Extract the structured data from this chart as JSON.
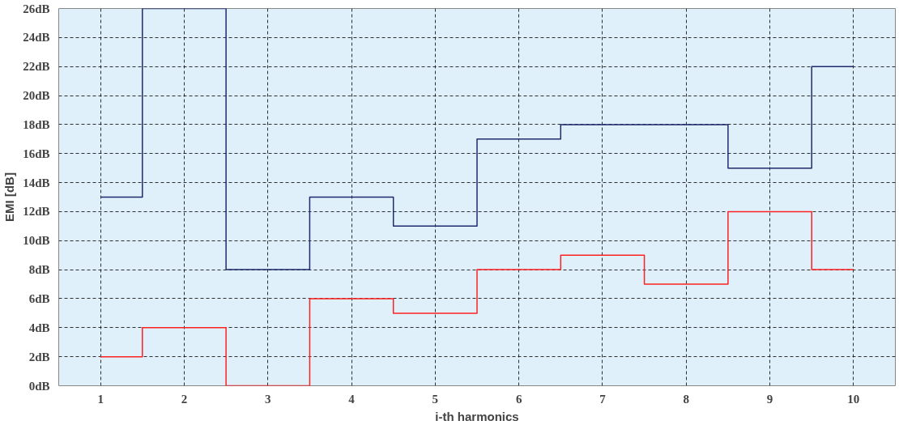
{
  "chart_data": {
    "type": "step",
    "xlabel": "i-th harmonics",
    "ylabel": "EMI [dB]",
    "categories": [
      "1",
      "2",
      "3",
      "4",
      "5",
      "6",
      "7",
      "8",
      "9",
      "10"
    ],
    "series": [
      {
        "color": "#1f2a6e",
        "values": [
          13,
          26,
          8,
          13,
          11,
          17,
          18,
          18,
          15,
          22
        ]
      },
      {
        "color": "#ff2020",
        "values": [
          2,
          4,
          0,
          6,
          5,
          8,
          9,
          7,
          12,
          8
        ]
      }
    ],
    "ylim": [
      0,
      26
    ],
    "yticks": [
      {
        "value": 0,
        "label": "0dB"
      },
      {
        "value": 2,
        "label": "2dB"
      },
      {
        "value": 4,
        "label": "4dB"
      },
      {
        "value": 6,
        "label": "6dB"
      },
      {
        "value": 8,
        "label": "8dB"
      },
      {
        "value": 10,
        "label": "10dB"
      },
      {
        "value": 12,
        "label": "12dB"
      },
      {
        "value": 14,
        "label": "14dB"
      },
      {
        "value": 16,
        "label": "16dB"
      },
      {
        "value": 18,
        "label": "18dB"
      },
      {
        "value": 20,
        "label": "20dB"
      },
      {
        "value": 22,
        "label": "22dB"
      },
      {
        "value": 24,
        "label": "24dB"
      },
      {
        "value": 26,
        "label": "26dB"
      }
    ],
    "grid": true,
    "line_style": "solid"
  }
}
